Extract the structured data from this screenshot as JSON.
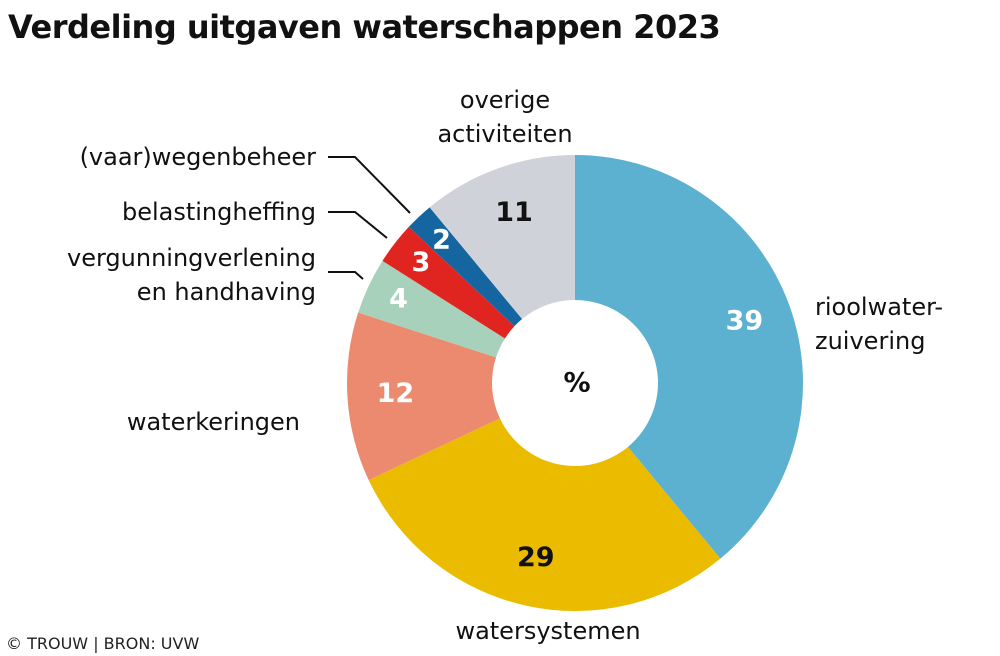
{
  "chart_data": {
    "type": "donut",
    "title": "Verdeling uitgaven waterschappen 2023",
    "center_label": "%",
    "source": "© TROUW | BRON: UVW",
    "categories": [
      "rioolwater-\nzuivering",
      "watersystemen",
      "waterkeringen",
      "vergunningverlening\nen handhaving",
      "belastingheffing",
      "(vaar)wegenbeheer",
      "overige\nactiviteiten"
    ],
    "values": [
      39,
      29,
      12,
      4,
      3,
      2,
      11
    ],
    "colors": [
      "#5db1d0",
      "#ebbb00",
      "#ec8a6f",
      "#a8d1bc",
      "#e02521",
      "#1565a0",
      "#cfd2d8"
    ],
    "label_colors": [
      "#ffffff",
      "#111111",
      "#ffffff",
      "#ffffff",
      "#ffffff",
      "#ffffff",
      "#111111"
    ]
  }
}
